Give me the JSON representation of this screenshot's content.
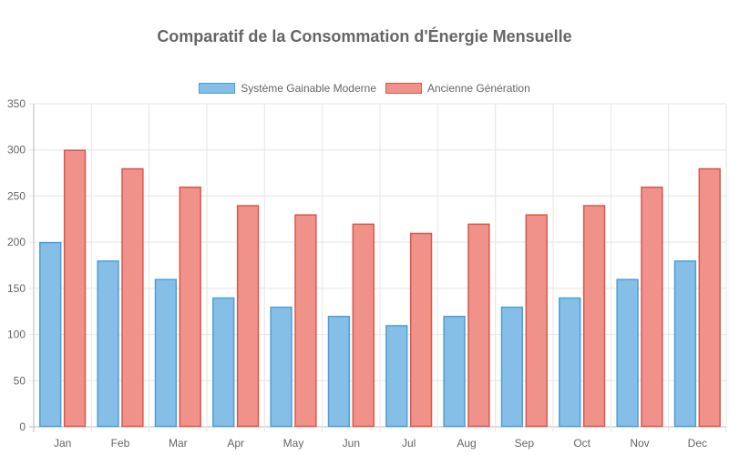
{
  "chart_data": {
    "type": "bar",
    "title": "Comparatif de la Consommation d'Énergie Mensuelle",
    "xlabel": "",
    "ylabel": "",
    "categories": [
      "Jan",
      "Feb",
      "Mar",
      "Apr",
      "May",
      "Jun",
      "Jul",
      "Aug",
      "Sep",
      "Oct",
      "Nov",
      "Dec"
    ],
    "series": [
      {
        "name": "Système Gainable Moderne",
        "values": [
          200,
          180,
          160,
          140,
          130,
          120,
          110,
          120,
          130,
          140,
          160,
          180
        ],
        "fill": "#85bfe8",
        "stroke": "#4a9fd6"
      },
      {
        "name": "Ancienne Génération",
        "values": [
          300,
          280,
          260,
          240,
          230,
          220,
          210,
          220,
          230,
          240,
          260,
          280
        ],
        "fill": "#f0928a",
        "stroke": "#d9574a"
      }
    ],
    "ylim": [
      0,
      350
    ],
    "yticks": [
      0,
      50,
      100,
      150,
      200,
      250,
      300,
      350
    ],
    "grid": true,
    "legend_position": "top"
  }
}
